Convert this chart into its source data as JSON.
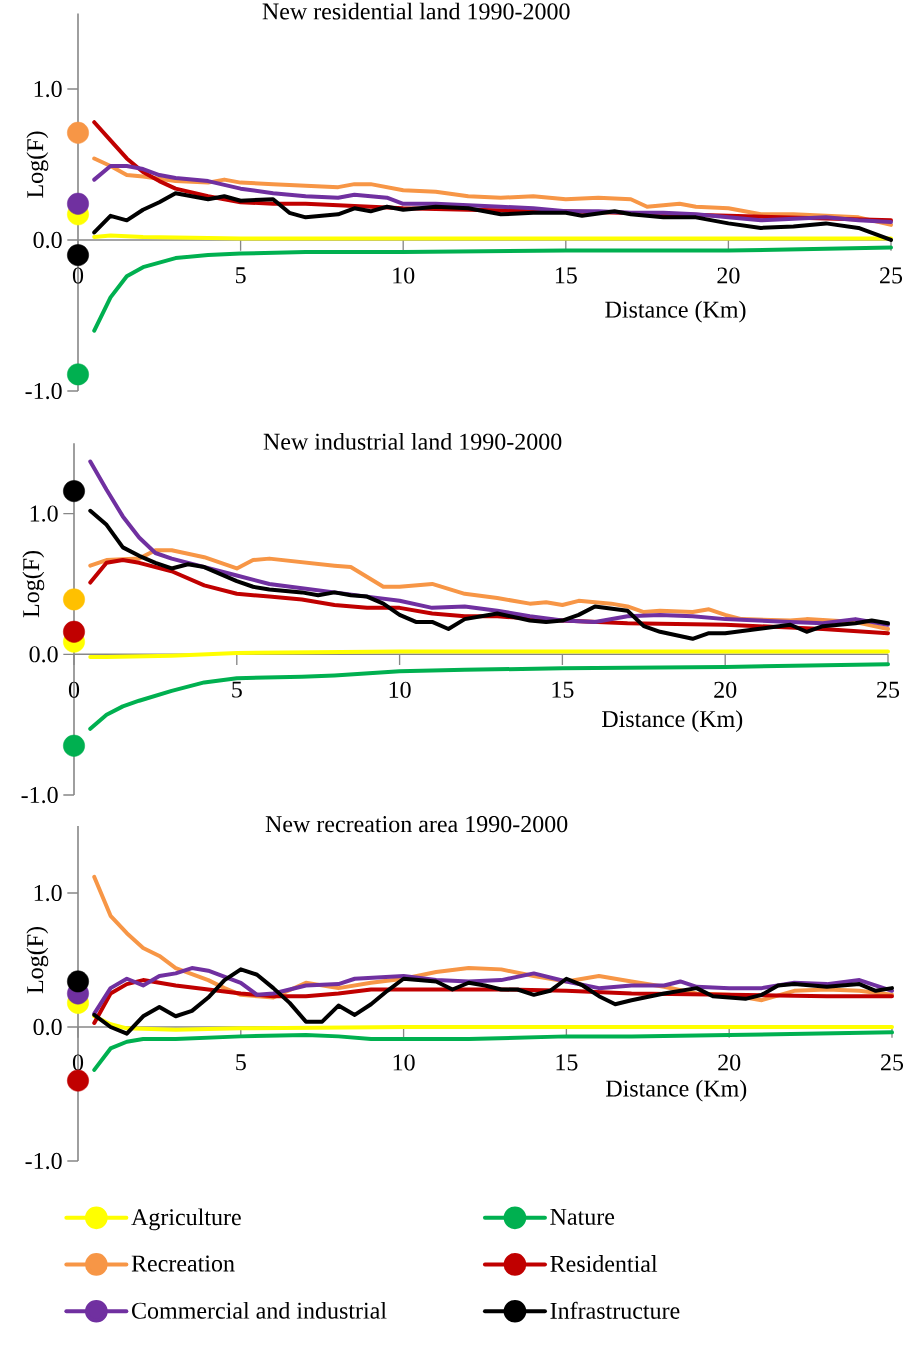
{
  "chart_data": [
    {
      "type": "line",
      "title": "New residential land 1990-2000",
      "xlabel": "Distance (Km)",
      "ylabel": "Log(F)",
      "xlim": [
        0,
        25
      ],
      "ylim": [
        -1,
        1.5
      ],
      "xticks": [
        0,
        5,
        10,
        15,
        20,
        25
      ],
      "yticks": [
        {
          "value": -1,
          "label": "-1.0"
        },
        {
          "value": 0,
          "label": "0.0"
        },
        {
          "value": 1,
          "label": "1.0"
        }
      ],
      "series": [
        {
          "color": "#ffff00",
          "x": [
            0.5,
            1,
            2,
            5,
            10,
            15,
            20,
            25
          ],
          "values": [
            0.02,
            0.03,
            0.02,
            0.01,
            0.01,
            0.01,
            0.01,
            0.01
          ]
        },
        {
          "color": "#00b050",
          "x": [
            0.5,
            1,
            1.5,
            2,
            3,
            4,
            5,
            7,
            10,
            15,
            20,
            25
          ],
          "values": [
            -0.6,
            -0.38,
            -0.24,
            -0.18,
            -0.12,
            -0.1,
            -0.09,
            -0.08,
            -0.08,
            -0.07,
            -0.07,
            -0.05
          ]
        },
        {
          "color": "#f79646",
          "x": [
            0.5,
            1,
            1.5,
            2,
            3,
            4,
            4.5,
            5,
            6,
            7,
            8,
            8.5,
            9,
            10,
            11,
            12,
            13,
            14,
            15,
            16,
            17,
            17.5,
            18.5,
            19,
            20,
            21,
            22,
            23,
            24,
            25
          ],
          "values": [
            0.54,
            0.49,
            0.43,
            0.42,
            0.39,
            0.38,
            0.4,
            0.38,
            0.37,
            0.36,
            0.35,
            0.37,
            0.37,
            0.33,
            0.32,
            0.29,
            0.28,
            0.29,
            0.27,
            0.28,
            0.27,
            0.22,
            0.24,
            0.22,
            0.21,
            0.17,
            0.17,
            0.16,
            0.15,
            0.1
          ]
        },
        {
          "color": "#c00000",
          "x": [
            0.5,
            1,
            1.5,
            2,
            2.5,
            3,
            4,
            5,
            6,
            7,
            8,
            9,
            10,
            12,
            15,
            20,
            25
          ],
          "values": [
            0.78,
            0.66,
            0.54,
            0.45,
            0.39,
            0.34,
            0.29,
            0.25,
            0.24,
            0.24,
            0.23,
            0.22,
            0.21,
            0.2,
            0.19,
            0.16,
            0.13
          ]
        },
        {
          "color": "#7030a0",
          "x": [
            0.5,
            1,
            1.5,
            2,
            2.5,
            3,
            4,
            5,
            6,
            7,
            8,
            8.5,
            9.5,
            10,
            11,
            12,
            13,
            14,
            15,
            16,
            17,
            18,
            19,
            20,
            21,
            22,
            23,
            24,
            25
          ],
          "values": [
            0.4,
            0.49,
            0.49,
            0.47,
            0.43,
            0.41,
            0.39,
            0.34,
            0.31,
            0.29,
            0.28,
            0.3,
            0.28,
            0.24,
            0.24,
            0.23,
            0.22,
            0.21,
            0.19,
            0.19,
            0.18,
            0.18,
            0.17,
            0.15,
            0.13,
            0.14,
            0.15,
            0.13,
            0.12
          ]
        },
        {
          "color": "#000000",
          "x": [
            0.5,
            1,
            1.5,
            2,
            2.5,
            3,
            4,
            4.5,
            5,
            6,
            6.5,
            7,
            8,
            8.5,
            9,
            9.5,
            10,
            11,
            12,
            13,
            14,
            15,
            15.5,
            16.5,
            17,
            18,
            19,
            20,
            21,
            22,
            23,
            24,
            25
          ],
          "values": [
            0.05,
            0.16,
            0.13,
            0.2,
            0.25,
            0.31,
            0.27,
            0.29,
            0.26,
            0.27,
            0.18,
            0.15,
            0.17,
            0.21,
            0.19,
            0.22,
            0.2,
            0.22,
            0.21,
            0.17,
            0.18,
            0.18,
            0.16,
            0.19,
            0.17,
            0.15,
            0.15,
            0.11,
            0.08,
            0.09,
            0.11,
            0.08,
            0.0
          ]
        },
        {
          "type": "scatter",
          "marker": "circle",
          "color": "#ffff00",
          "x": [
            0
          ],
          "values": [
            0.17
          ]
        },
        {
          "type": "scatter",
          "marker": "circle",
          "color": "#00b050",
          "x": [
            0
          ],
          "values": [
            -0.89
          ]
        },
        {
          "type": "scatter",
          "marker": "circle",
          "color": "#f79646",
          "x": [
            0
          ],
          "values": [
            0.71
          ]
        },
        {
          "type": "scatter",
          "marker": "circle",
          "color": "#7030a0",
          "x": [
            0
          ],
          "values": [
            0.24
          ]
        },
        {
          "type": "scatter",
          "marker": "circle",
          "color": "#000000",
          "x": [
            0
          ],
          "values": [
            -0.1
          ]
        }
      ]
    },
    {
      "type": "line",
      "title": "New industrial land 1990-2000",
      "xlabel": "Distance (Km)",
      "ylabel": "Log(F)",
      "xlim": [
        0,
        25
      ],
      "ylim": [
        -1,
        1.5
      ],
      "xticks": [
        0,
        5,
        10,
        15,
        20,
        25
      ],
      "yticks": [
        {
          "value": -1,
          "label": "-1.0"
        },
        {
          "value": 0,
          "label": "0.0"
        },
        {
          "value": 1,
          "label": "1.0"
        }
      ],
      "series": [
        {
          "color": "#ffff00",
          "x": [
            0.5,
            1,
            3,
            5,
            10,
            15,
            25
          ],
          "values": [
            -0.02,
            -0.02,
            -0.01,
            0.01,
            0.02,
            0.02,
            0.02
          ]
        },
        {
          "color": "#00b050",
          "x": [
            0.5,
            1,
            1.5,
            2,
            3,
            4,
            5,
            7,
            8,
            10,
            12,
            15,
            20,
            25
          ],
          "values": [
            -0.53,
            -0.43,
            -0.37,
            -0.33,
            -0.26,
            -0.2,
            -0.17,
            -0.16,
            -0.15,
            -0.12,
            -0.11,
            -0.1,
            -0.09,
            -0.07
          ]
        },
        {
          "color": "#f79646",
          "x": [
            0.5,
            1,
            2,
            2.5,
            3,
            4,
            5,
            5.5,
            6,
            8,
            8.5,
            9,
            9.5,
            10,
            11,
            12,
            13,
            14,
            14.5,
            15,
            15.5,
            16.5,
            17,
            17.5,
            18,
            19,
            19.5,
            20,
            20.5,
            22,
            22.5,
            24,
            25
          ],
          "values": [
            0.63,
            0.67,
            0.68,
            0.74,
            0.74,
            0.69,
            0.61,
            0.67,
            0.68,
            0.63,
            0.62,
            0.55,
            0.48,
            0.48,
            0.5,
            0.43,
            0.4,
            0.36,
            0.37,
            0.35,
            0.38,
            0.36,
            0.34,
            0.3,
            0.31,
            0.3,
            0.32,
            0.28,
            0.25,
            0.24,
            0.25,
            0.23,
            0.18
          ]
        },
        {
          "color": "#c00000",
          "x": [
            0.5,
            1,
            1.5,
            2,
            3,
            4,
            5,
            6,
            7,
            8,
            9,
            10,
            11,
            12,
            13,
            15,
            17,
            20,
            23,
            25
          ],
          "values": [
            0.51,
            0.65,
            0.67,
            0.65,
            0.59,
            0.49,
            0.43,
            0.41,
            0.39,
            0.35,
            0.33,
            0.33,
            0.29,
            0.27,
            0.27,
            0.24,
            0.22,
            0.21,
            0.18,
            0.15
          ]
        },
        {
          "color": "#7030a0",
          "x": [
            0.5,
            1,
            1.5,
            2,
            2.5,
            3,
            4,
            5,
            6,
            7,
            8,
            9,
            10,
            11,
            12,
            13,
            14,
            15,
            16,
            17,
            18,
            19,
            20,
            21,
            22,
            23,
            24,
            25
          ],
          "values": [
            1.37,
            1.17,
            0.98,
            0.83,
            0.72,
            0.68,
            0.62,
            0.56,
            0.5,
            0.47,
            0.44,
            0.41,
            0.38,
            0.33,
            0.34,
            0.31,
            0.27,
            0.24,
            0.23,
            0.27,
            0.28,
            0.27,
            0.25,
            0.24,
            0.23,
            0.22,
            0.25,
            0.21
          ]
        },
        {
          "color": "#000000",
          "x": [
            0.5,
            1,
            1.5,
            2,
            2.5,
            3,
            3.5,
            4,
            4.5,
            5,
            5.5,
            6,
            7,
            7.5,
            8,
            8.5,
            9,
            9.5,
            10,
            10.5,
            11,
            11.5,
            12,
            13,
            14,
            14.5,
            15,
            15.5,
            16,
            17,
            17.5,
            18,
            19,
            19.5,
            20,
            21,
            22,
            22.5,
            23,
            24,
            24.5,
            25
          ],
          "values": [
            1.02,
            0.92,
            0.76,
            0.7,
            0.65,
            0.61,
            0.64,
            0.62,
            0.57,
            0.52,
            0.48,
            0.46,
            0.44,
            0.42,
            0.44,
            0.42,
            0.41,
            0.36,
            0.28,
            0.23,
            0.23,
            0.18,
            0.25,
            0.29,
            0.24,
            0.23,
            0.24,
            0.28,
            0.34,
            0.31,
            0.2,
            0.16,
            0.11,
            0.15,
            0.15,
            0.18,
            0.21,
            0.16,
            0.2,
            0.22,
            0.24,
            0.22
          ]
        },
        {
          "type": "scatter",
          "marker": "circle",
          "color": "#ffff00",
          "x": [
            0
          ],
          "values": [
            0.09
          ]
        },
        {
          "type": "scatter",
          "marker": "circle",
          "color": "#00b050",
          "x": [
            0
          ],
          "values": [
            -0.65
          ]
        },
        {
          "type": "scatter",
          "marker": "circle",
          "color": "#ffc000",
          "x": [
            0
          ],
          "values": [
            0.39
          ]
        },
        {
          "type": "scatter",
          "marker": "circle",
          "color": "#c00000",
          "x": [
            0
          ],
          "values": [
            0.16
          ]
        },
        {
          "type": "scatter",
          "marker": "circle",
          "color": "#000000",
          "x": [
            0
          ],
          "values": [
            1.16
          ]
        }
      ]
    },
    {
      "type": "line",
      "title": "New recreation area 1990-2000",
      "xlabel": "Distance (Km)",
      "ylabel": "Log(F)",
      "xlim": [
        0,
        25
      ],
      "ylim": [
        -1,
        1.5
      ],
      "xticks": [
        0,
        5,
        10,
        15,
        20,
        25
      ],
      "yticks": [
        {
          "value": -1,
          "label": "-1.0"
        },
        {
          "value": 0,
          "label": "0.0"
        },
        {
          "value": 1,
          "label": "1.0"
        }
      ],
      "legend": "bottom",
      "series": [
        {
          "name": "Agriculture",
          "color": "#ffff00",
          "x": [
            0.5,
            1,
            1.5,
            3,
            5,
            10,
            15,
            25
          ],
          "values": [
            0.08,
            0.02,
            -0.01,
            -0.02,
            -0.01,
            0.0,
            0.0,
            0.0
          ]
        },
        {
          "name": "Nature",
          "color": "#00b050",
          "x": [
            0.5,
            1,
            1.5,
            2,
            3,
            5,
            7,
            8,
            9,
            10,
            12,
            15,
            17,
            20,
            25
          ],
          "values": [
            -0.32,
            -0.16,
            -0.11,
            -0.09,
            -0.09,
            -0.07,
            -0.06,
            -0.07,
            -0.09,
            -0.09,
            -0.09,
            -0.07,
            -0.07,
            -0.06,
            -0.04
          ]
        },
        {
          "name": "Recreation",
          "color": "#f79646",
          "x": [
            0.5,
            1,
            1.5,
            2,
            2.5,
            3,
            4,
            4.5,
            5,
            6,
            7,
            8,
            9,
            10,
            11,
            12,
            13,
            14,
            15,
            16,
            17,
            18,
            19,
            20,
            21,
            22,
            23,
            24,
            25
          ],
          "values": [
            1.12,
            0.83,
            0.7,
            0.59,
            0.53,
            0.44,
            0.35,
            0.29,
            0.24,
            0.22,
            0.33,
            0.29,
            0.33,
            0.36,
            0.41,
            0.44,
            0.43,
            0.38,
            0.34,
            0.38,
            0.34,
            0.3,
            0.25,
            0.24,
            0.2,
            0.27,
            0.28,
            0.27,
            0.24
          ]
        },
        {
          "name": "Residential",
          "color": "#c00000",
          "x": [
            0.5,
            1,
            1.5,
            2,
            3,
            4,
            5,
            6,
            7,
            8,
            9,
            10,
            12,
            13,
            15,
            17,
            20,
            23,
            25
          ],
          "values": [
            0.03,
            0.25,
            0.32,
            0.35,
            0.31,
            0.28,
            0.25,
            0.23,
            0.23,
            0.25,
            0.28,
            0.28,
            0.28,
            0.28,
            0.27,
            0.25,
            0.24,
            0.23,
            0.23
          ]
        },
        {
          "name": "Commercial and industrial",
          "color": "#7030a0",
          "x": [
            0.5,
            1,
            1.5,
            2,
            2.5,
            3,
            3.5,
            4,
            5,
            5.5,
            6,
            7,
            8,
            8.5,
            10,
            11,
            12,
            13,
            14,
            15,
            16,
            17,
            18,
            18.5,
            19,
            20,
            21,
            22,
            23,
            24,
            25
          ],
          "values": [
            0.1,
            0.29,
            0.36,
            0.31,
            0.38,
            0.4,
            0.44,
            0.42,
            0.33,
            0.24,
            0.25,
            0.31,
            0.32,
            0.36,
            0.38,
            0.35,
            0.34,
            0.35,
            0.4,
            0.34,
            0.29,
            0.31,
            0.31,
            0.34,
            0.3,
            0.29,
            0.29,
            0.33,
            0.32,
            0.35,
            0.27
          ]
        },
        {
          "name": "Infrastructure",
          "color": "#000000",
          "x": [
            0.5,
            1,
            1.5,
            2,
            2.5,
            3,
            3.5,
            4,
            4.5,
            5,
            5.5,
            6,
            6.5,
            7,
            7.5,
            8,
            8.5,
            9,
            9.5,
            10,
            11,
            11.5,
            12,
            12.5,
            13,
            13.5,
            14,
            14.5,
            15,
            15.5,
            16,
            16.5,
            17,
            18,
            19,
            19.5,
            20,
            20.5,
            21,
            21.5,
            22,
            23,
            24,
            24.5,
            25
          ],
          "values": [
            0.09,
            0.0,
            -0.05,
            0.08,
            0.15,
            0.08,
            0.12,
            0.22,
            0.35,
            0.43,
            0.39,
            0.29,
            0.18,
            0.04,
            0.04,
            0.16,
            0.09,
            0.17,
            0.27,
            0.36,
            0.34,
            0.28,
            0.33,
            0.31,
            0.28,
            0.28,
            0.24,
            0.27,
            0.36,
            0.31,
            0.23,
            0.17,
            0.2,
            0.25,
            0.29,
            0.23,
            0.22,
            0.21,
            0.24,
            0.31,
            0.32,
            0.3,
            0.32,
            0.27,
            0.29
          ]
        },
        {
          "type": "scatter",
          "marker": "circle",
          "color": "#ffff00",
          "x": [
            0
          ],
          "values": [
            0.18
          ]
        },
        {
          "type": "scatter",
          "marker": "circle",
          "color": "#c00000",
          "x": [
            0
          ],
          "values": [
            -0.4
          ]
        },
        {
          "type": "scatter",
          "marker": "circle",
          "color": "#7030a0",
          "x": [
            0
          ],
          "values": [
            0.25
          ]
        },
        {
          "type": "scatter",
          "marker": "circle",
          "color": "#000000",
          "x": [
            0
          ],
          "values": [
            0.34
          ]
        }
      ]
    }
  ]
}
